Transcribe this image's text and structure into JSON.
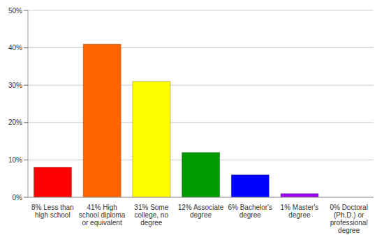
{
  "chart_data": {
    "type": "bar",
    "categories": [
      "8% Less than high school",
      "41% High school diploma or equivalent",
      "31% Some college, no degree",
      "12% Associate degree",
      "6% Bachelor's degree",
      "1% Master's degree",
      "0% Doctoral (Ph.D.) or professional degree"
    ],
    "values": [
      8,
      41,
      31,
      12,
      6,
      1,
      0
    ],
    "colors": [
      "#ff0000",
      "#ff6600",
      "#ffff00",
      "#009900",
      "#0000ff",
      "#9900ff",
      "#ff00ff"
    ],
    "ylim": [
      0,
      50
    ],
    "yticks": [
      {
        "value": 0,
        "label": "0%"
      },
      {
        "value": 10,
        "label": "10%"
      },
      {
        "value": 20,
        "label": "20%"
      },
      {
        "value": 30,
        "label": "30%"
      },
      {
        "value": 40,
        "label": "40%"
      },
      {
        "value": 50,
        "label": "50%"
      }
    ],
    "grid": true
  }
}
